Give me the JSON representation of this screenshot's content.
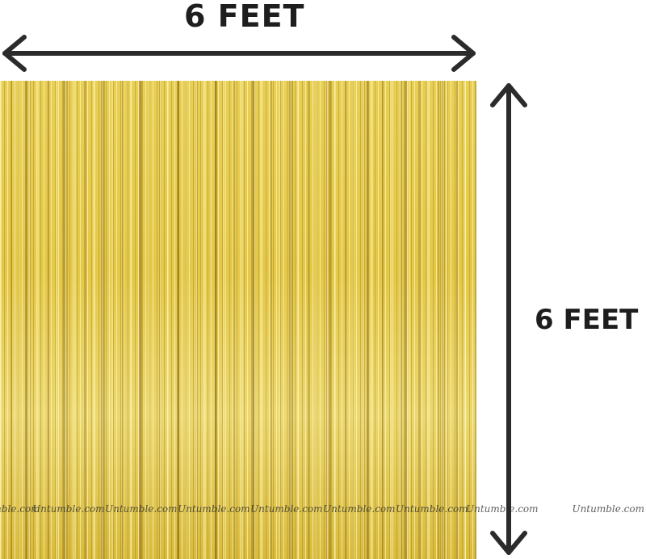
{
  "labels": {
    "width": "6 FEET",
    "height": "6 FEET"
  },
  "watermark": "Untumble.com",
  "colors": {
    "arrow": "#2b2b2b",
    "curtain": "#e4c848",
    "text": "#1e1e1e"
  },
  "icons": {
    "horizontal": "double-arrow-horizontal-icon",
    "vertical": "double-arrow-vertical-icon"
  }
}
